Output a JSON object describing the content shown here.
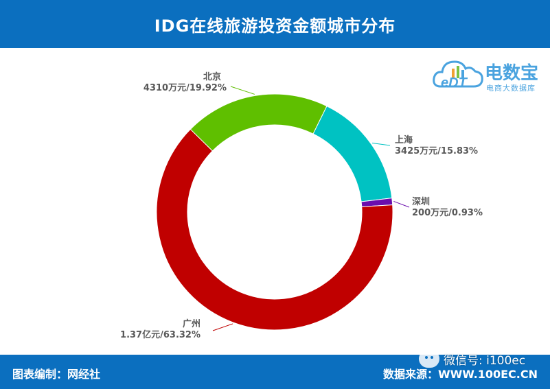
{
  "header": {
    "title": "IDG在线旅游投资金额城市分布"
  },
  "footer": {
    "left": "图表编制：网经社",
    "right": "数据来源：WWW.100EC.CN"
  },
  "watermark": {
    "wechat": "微信号: i100ec"
  },
  "logo": {
    "cn": "电数宝",
    "sub": "电商大数据库",
    "en": "eDT"
  },
  "chart_data": {
    "type": "pie",
    "donut": true,
    "title": "IDG在线旅游投资金额城市分布",
    "slices": [
      {
        "name": "北京",
        "label": "4310万元/19.92%",
        "value": 4310,
        "percent": 19.92,
        "color": "#5fbf00"
      },
      {
        "name": "上海",
        "label": "3425万元/15.83%",
        "value": 3425,
        "percent": 15.83,
        "color": "#00c2c2"
      },
      {
        "name": "深圳",
        "label": "200万元/0.93%",
        "value": 200,
        "percent": 0.93,
        "color": "#6a0dad"
      },
      {
        "name": "广州",
        "label": "1.37亿元/63.32%",
        "value": 13700,
        "percent": 63.32,
        "color": "#c00000"
      }
    ]
  }
}
